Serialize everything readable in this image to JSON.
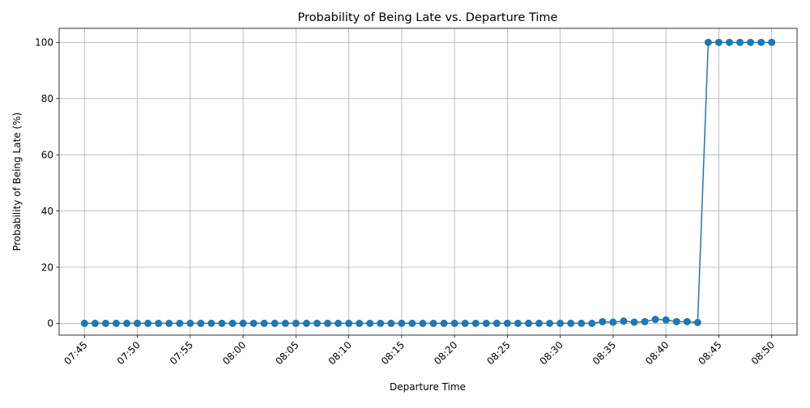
{
  "chart_data": {
    "type": "line",
    "title": "Probability of Being Late vs. Departure Time",
    "xlabel": "Departure Time",
    "ylabel": "Probability of Being Late (%)",
    "x_tick_labels": [
      "07:45",
      "07:50",
      "07:55",
      "08:00",
      "08:05",
      "08:10",
      "08:15",
      "08:20",
      "08:25",
      "08:30",
      "08:35",
      "08:40",
      "08:45",
      "08:50"
    ],
    "y_tick_labels": [
      "0",
      "20",
      "40",
      "60",
      "80",
      "100"
    ],
    "y_ticks": [
      0,
      20,
      40,
      60,
      80,
      100
    ],
    "ylim": [
      -4.2,
      105
    ],
    "xlim": [
      "07:42:36",
      "08:52:24"
    ],
    "grid": true,
    "line_color": "#1f77b4",
    "marker": "circle",
    "x": [
      "07:45",
      "07:46",
      "07:47",
      "07:48",
      "07:49",
      "07:50",
      "07:51",
      "07:52",
      "07:53",
      "07:54",
      "07:55",
      "07:56",
      "07:57",
      "07:58",
      "07:59",
      "08:00",
      "08:01",
      "08:02",
      "08:03",
      "08:04",
      "08:05",
      "08:06",
      "08:07",
      "08:08",
      "08:09",
      "08:10",
      "08:11",
      "08:12",
      "08:13",
      "08:14",
      "08:15",
      "08:16",
      "08:17",
      "08:18",
      "08:19",
      "08:20",
      "08:21",
      "08:22",
      "08:23",
      "08:24",
      "08:25",
      "08:26",
      "08:27",
      "08:28",
      "08:29",
      "08:30",
      "08:31",
      "08:32",
      "08:33",
      "08:34",
      "08:35",
      "08:36",
      "08:37",
      "08:38",
      "08:39",
      "08:40",
      "08:41",
      "08:42",
      "08:43",
      "08:44",
      "08:45",
      "08:46",
      "08:47",
      "08:48",
      "08:49",
      "08:50"
    ],
    "y": [
      0,
      0,
      0,
      0,
      0,
      0,
      0,
      0,
      0,
      0,
      0,
      0,
      0,
      0,
      0,
      0,
      0,
      0,
      0,
      0,
      0,
      0,
      0,
      0,
      0,
      0,
      0,
      0,
      0,
      0,
      0,
      0,
      0,
      0,
      0,
      0,
      0,
      0,
      0,
      0,
      0,
      0,
      0,
      0,
      0,
      0,
      0,
      0,
      0,
      0.6,
      0.4,
      0.8,
      0.4,
      0.6,
      1.4,
      1.2,
      0.6,
      0.6,
      0.3,
      100,
      100,
      100,
      100,
      100,
      100,
      100
    ]
  }
}
